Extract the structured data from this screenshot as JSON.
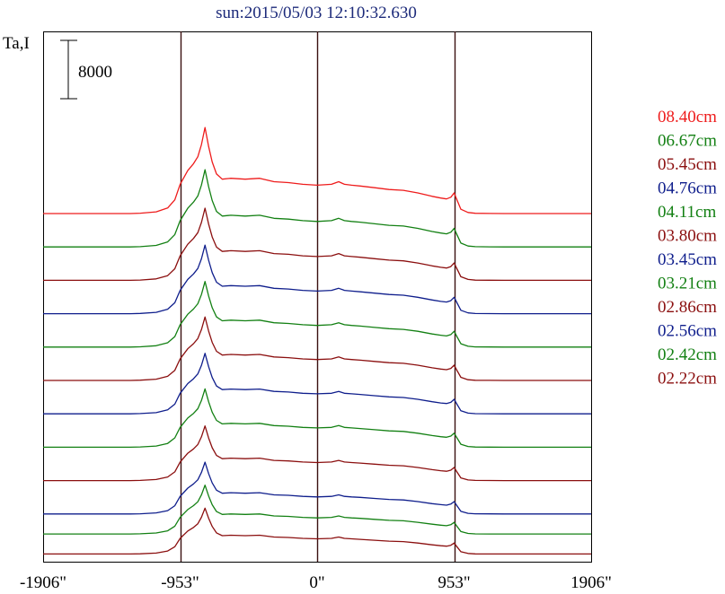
{
  "chart_data": {
    "type": "line",
    "title": "sun:2015/05/03 12:10:32.630",
    "ylabel": "Ta,I",
    "scale_bar_label": "8000",
    "scale_bar_value": 8000,
    "xlim": [
      -1906,
      1906
    ],
    "xticks": [
      {
        "value": -1906,
        "label": "-1906\""
      },
      {
        "value": -953,
        "label": "-953\""
      },
      {
        "value": 0,
        "label": "0\""
      },
      {
        "value": 953,
        "label": "953\""
      },
      {
        "value": 1906,
        "label": "1906\""
      }
    ],
    "vlines": [
      -953,
      0,
      953
    ],
    "grid": false,
    "legend_position": "right",
    "colors": {
      "title": "#1c2a7a",
      "red": "#ee1c1c",
      "green": "#138013",
      "darkred": "#8b0f0f",
      "blue": "#0f1e8c",
      "axes": "#000000",
      "vline": "#3a1010"
    },
    "x": [
      -1906,
      -1300,
      -1230,
      -1120,
      -1040,
      -990,
      -953,
      -900,
      -860,
      -830,
      -805,
      -780,
      -755,
      -730,
      -700,
      -660,
      -600,
      -500,
      -400,
      -300,
      -200,
      -100,
      0,
      100,
      150,
      190,
      240,
      300,
      400,
      500,
      600,
      700,
      800,
      860,
      900,
      930,
      953,
      975,
      1000,
      1050,
      1100,
      1200,
      1300,
      1906
    ],
    "shape": [
      0,
      0,
      0.004,
      0.02,
      0.065,
      0.16,
      0.34,
      0.5,
      0.58,
      0.66,
      0.8,
      1.0,
      0.78,
      0.6,
      0.46,
      0.4,
      0.41,
      0.4,
      0.41,
      0.37,
      0.36,
      0.34,
      0.33,
      0.34,
      0.37,
      0.34,
      0.33,
      0.32,
      0.3,
      0.28,
      0.27,
      0.24,
      0.2,
      0.18,
      0.17,
      0.19,
      0.24,
      0.15,
      0.05,
      0.012,
      0.003,
      0.001,
      0,
      0
    ],
    "series": [
      {
        "name": "08.40cm",
        "color": "#ee1c1c",
        "baseline": 10,
        "amplitude": 11800
      },
      {
        "name": "06.67cm",
        "color": "#138013",
        "baseline": 9,
        "amplitude": 10600
      },
      {
        "name": "05.45cm",
        "color": "#8b0f0f",
        "baseline": 8,
        "amplitude": 9900
      },
      {
        "name": "04.76cm",
        "color": "#0f1e8c",
        "baseline": 7,
        "amplitude": 9400
      },
      {
        "name": "04.11cm",
        "color": "#138013",
        "baseline": 6,
        "amplitude": 9000
      },
      {
        "name": "03.80cm",
        "color": "#8b0f0f",
        "baseline": 5,
        "amplitude": 8700
      },
      {
        "name": "03.45cm",
        "color": "#0f1e8c",
        "baseline": 4,
        "amplitude": 8300
      },
      {
        "name": "03.21cm",
        "color": "#138013",
        "baseline": 3,
        "amplitude": 8000
      },
      {
        "name": "02.86cm",
        "color": "#8b0f0f",
        "baseline": 2,
        "amplitude": 7500
      },
      {
        "name": "02.56cm",
        "color": "#0f1e8c",
        "baseline": 1,
        "amplitude": 7100
      },
      {
        "name": "02.42cm",
        "color": "#138013",
        "baseline": 0.4,
        "amplitude": 6700
      },
      {
        "name": "02.22cm",
        "color": "#8b0f0f",
        "baseline": -0.2,
        "amplitude": 6300
      }
    ]
  }
}
